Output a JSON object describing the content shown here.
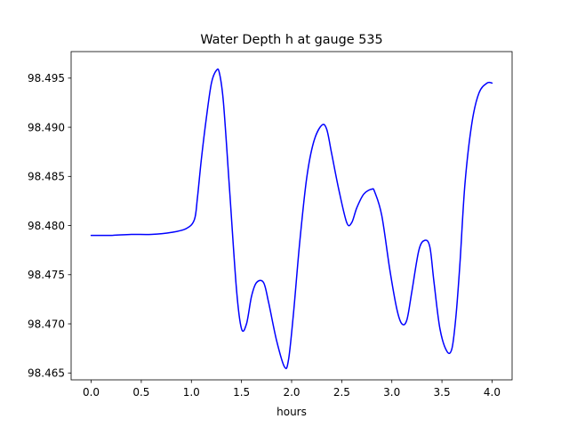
{
  "chart_data": {
    "type": "line",
    "title": "Water Depth h at gauge 535",
    "xlabel": "hours",
    "ylabel": "",
    "xlim": [
      -0.2,
      4.2
    ],
    "ylim": [
      98.4643,
      98.4977
    ],
    "grid": false,
    "x_ticks": [
      0.0,
      0.5,
      1.0,
      1.5,
      2.0,
      2.5,
      3.0,
      3.5,
      4.0
    ],
    "x_tick_labels": [
      "0.0",
      "0.5",
      "1.0",
      "1.5",
      "2.0",
      "2.5",
      "3.0",
      "3.5",
      "4.0"
    ],
    "y_ticks": [
      98.465,
      98.47,
      98.475,
      98.48,
      98.485,
      98.49,
      98.495
    ],
    "y_tick_labels": [
      "98.465",
      "98.470",
      "98.475",
      "98.480",
      "98.485",
      "98.490",
      "98.495"
    ],
    "series": [
      {
        "color": "#0000ff",
        "x": [
          0.0,
          0.2,
          0.4,
          0.6,
          0.8,
          0.95,
          1.03,
          1.06,
          1.1,
          1.15,
          1.2,
          1.25,
          1.28,
          1.32,
          1.38,
          1.45,
          1.5,
          1.55,
          1.6,
          1.65,
          1.72,
          1.77,
          1.85,
          1.93,
          1.97,
          2.02,
          2.08,
          2.15,
          2.22,
          2.3,
          2.35,
          2.4,
          2.47,
          2.55,
          2.6,
          2.65,
          2.72,
          2.8,
          2.83,
          2.9,
          2.98,
          3.05,
          3.1,
          3.15,
          3.2,
          3.27,
          3.33,
          3.38,
          3.42,
          3.48,
          3.55,
          3.6,
          3.64,
          3.68,
          3.73,
          3.8,
          3.87,
          3.95,
          4.0
        ],
        "y": [
          98.479,
          98.479,
          98.4791,
          98.4791,
          98.4793,
          98.4797,
          98.4806,
          98.4828,
          98.4868,
          98.491,
          98.4945,
          98.4958,
          98.4955,
          98.4925,
          98.4838,
          98.4735,
          98.4695,
          98.47,
          98.4728,
          98.4742,
          98.4742,
          98.4722,
          98.4683,
          98.4656,
          98.4664,
          98.4712,
          98.4782,
          98.4848,
          98.4885,
          98.4902,
          98.4898,
          98.4873,
          98.4837,
          98.4803,
          98.4803,
          98.4818,
          98.4832,
          98.4837,
          98.4834,
          98.481,
          98.4755,
          98.4715,
          98.47,
          98.4704,
          98.4733,
          98.4775,
          98.4785,
          98.4778,
          98.4743,
          98.4695,
          98.4672,
          98.4675,
          98.4708,
          98.4762,
          98.4843,
          98.4905,
          98.4935,
          98.4945,
          98.4945
        ]
      }
    ]
  }
}
